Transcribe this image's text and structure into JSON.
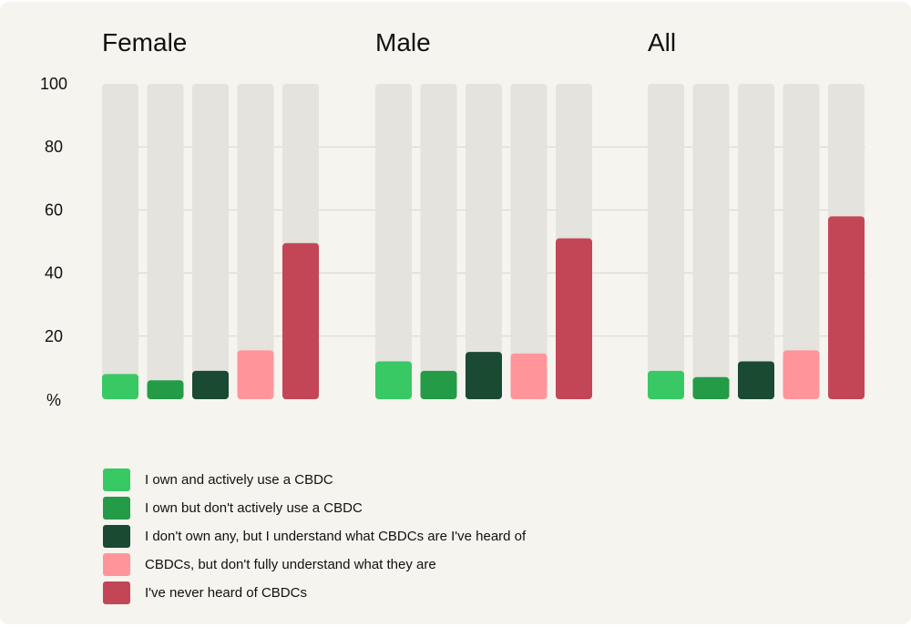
{
  "chart_data": {
    "type": "bar",
    "ylabel": "%",
    "ylim": [
      0,
      100
    ],
    "yticks": [
      100,
      80,
      60,
      40,
      20
    ],
    "grid": true,
    "groups": [
      "Female",
      "Male",
      "All"
    ],
    "series": [
      {
        "name": "I own and actively use a CBDC",
        "color": "#38c965",
        "values": [
          8,
          12,
          9
        ]
      },
      {
        "name": "I own but don't actively use a CBDC",
        "color": "#239b47",
        "values": [
          6,
          9,
          7
        ]
      },
      {
        "name": "I don't own any, but I understand what CBDCs are I've heard of",
        "color": "#1a4a32",
        "values": [
          9,
          15,
          12
        ]
      },
      {
        "name": "CBDCs, but don't fully understand what they are",
        "color": "#ff959b",
        "values": [
          15.5,
          14.5,
          15.5
        ]
      },
      {
        "name": "I've never heard of CBDCs",
        "color": "#c34657",
        "values": [
          49.5,
          51,
          58
        ]
      }
    ],
    "background_bar_color": "#e4e3dd",
    "legend_position": "bottom-left"
  }
}
